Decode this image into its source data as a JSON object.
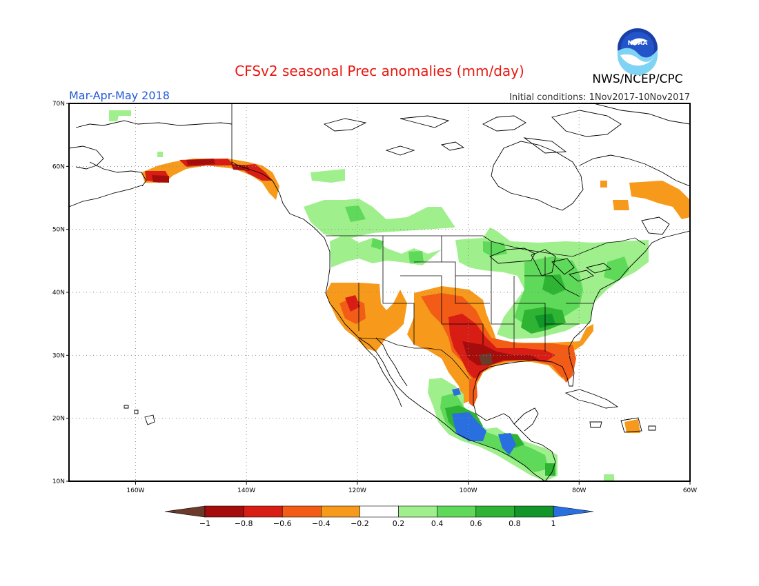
{
  "header": {
    "title": "CFSv2 seasonal Prec anomalies (mm/day)",
    "period": "Mar-Apr-May 2018",
    "initial_conditions": "Initial conditions:  1Nov2017-10Nov2017",
    "agency": "NWS/NCEP/CPC",
    "logo_text": "NOAA"
  },
  "map": {
    "lon_range": [
      -172,
      -60
    ],
    "lat_range": [
      10,
      70
    ],
    "lon_ticks": [
      {
        "value": -160,
        "label": "160W"
      },
      {
        "value": -140,
        "label": "140W"
      },
      {
        "value": -120,
        "label": "120W"
      },
      {
        "value": -100,
        "label": "100W"
      },
      {
        "value": -80,
        "label": "80W"
      },
      {
        "value": -60,
        "label": "60W"
      }
    ],
    "lat_ticks": [
      {
        "value": 10,
        "label": "10N"
      },
      {
        "value": 20,
        "label": "20N"
      },
      {
        "value": 30,
        "label": "30N"
      },
      {
        "value": 40,
        "label": "40N"
      },
      {
        "value": 50,
        "label": "50N"
      },
      {
        "value": 60,
        "label": "60N"
      },
      {
        "value": 70,
        "label": "70N"
      }
    ],
    "gridlines": true
  },
  "colorbar": {
    "labels": [
      "-1",
      "-0.8",
      "-0.6",
      "-0.4",
      "-0.2",
      "0.2",
      "0.4",
      "0.6",
      "0.8",
      "1"
    ],
    "low_color": "#6b3a2a",
    "high_color": "#2a6fe0",
    "colors": [
      "#a50d0d",
      "#d81e14",
      "#f25c16",
      "#f79a1b",
      "#ffffff",
      "#9ff08c",
      "#5fd95a",
      "#2eb332",
      "#12962a"
    ]
  },
  "anomalies": {
    "dry": [
      {
        "name": "southwest-us",
        "lon": -116,
        "lat": 36,
        "level": -0.4
      },
      {
        "name": "southern-plains",
        "lon": -101,
        "lat": 34,
        "level": -0.6
      },
      {
        "name": "gulf-coast",
        "lon": -94,
        "lat": 30,
        "level": -0.8
      },
      {
        "name": "southeast-coast",
        "lon": -82,
        "lat": 30,
        "level": -0.6
      },
      {
        "name": "southern-alaska",
        "lon": -150,
        "lat": 60,
        "level": -0.8
      },
      {
        "name": "labrador",
        "lon": -64,
        "lat": 54,
        "level": -0.4
      }
    ],
    "wet": [
      {
        "name": "western-canada",
        "lon": -118,
        "lat": 53,
        "level": 0.4
      },
      {
        "name": "ohio-valley",
        "lon": -86,
        "lat": 38,
        "level": 0.6
      },
      {
        "name": "northeast-us",
        "lon": -76,
        "lat": 43,
        "level": 0.4
      },
      {
        "name": "southern-mexico",
        "lon": -99,
        "lat": 19,
        "level": 1.0
      },
      {
        "name": "central-america",
        "lon": -90,
        "lat": 15,
        "level": 1.0
      }
    ]
  }
}
